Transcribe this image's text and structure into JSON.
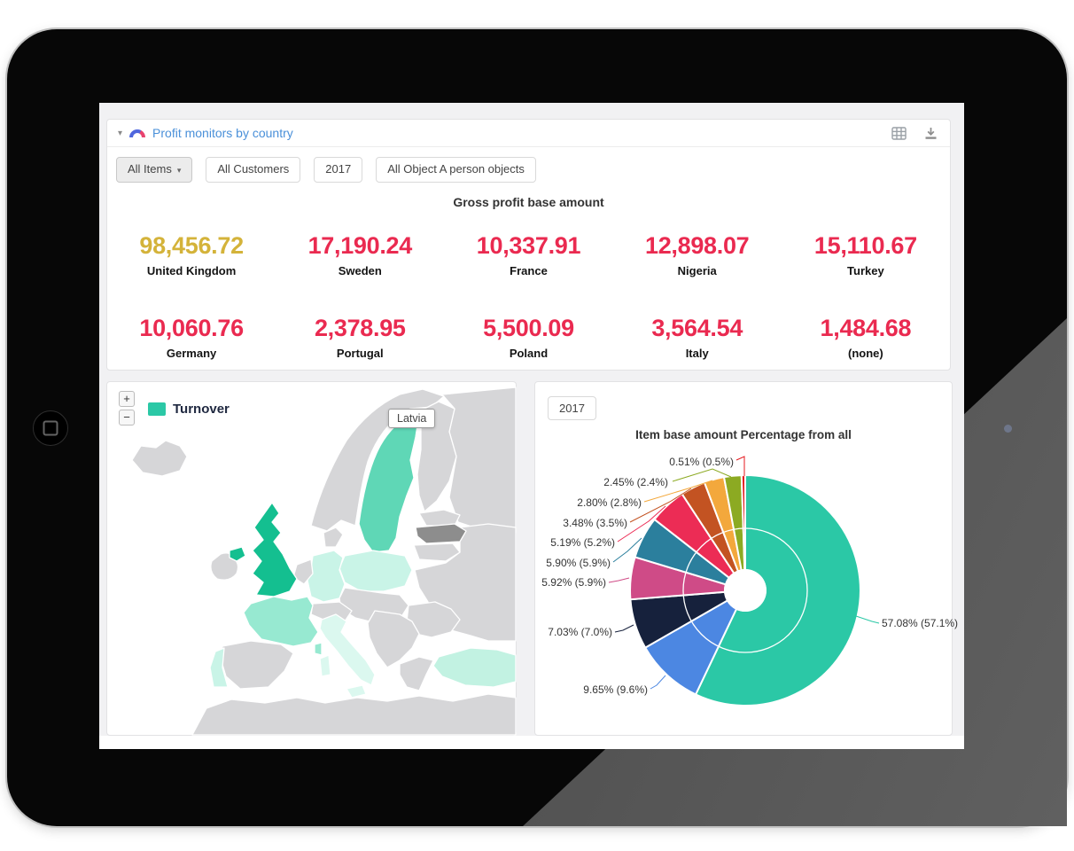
{
  "widget": {
    "title": "Profit monitors by country",
    "collapse_caret": "▾",
    "toolbar_icons": [
      "table-view-icon",
      "download-icon"
    ]
  },
  "filters": [
    {
      "label": "All Items",
      "caret": "▾",
      "active": true
    },
    {
      "label": "All Customers",
      "active": false
    },
    {
      "label": "2017",
      "active": false
    },
    {
      "label": "All Object A person objects",
      "active": false
    }
  ],
  "colors": {
    "title_blue": "#4a90d9",
    "kpi_red": "#ea2a50",
    "kpi_yellow": "#d4b33a",
    "turnover_teal": "#2bc8a6"
  },
  "chart_data": [
    {
      "type": "kpi",
      "title": "Gross profit base amount",
      "items": [
        {
          "country": "United Kingdom",
          "value": "98,456.72",
          "color": "#d4b33a"
        },
        {
          "country": "Sweden",
          "value": "17,190.24",
          "color": "#ea2a50"
        },
        {
          "country": "France",
          "value": "10,337.91",
          "color": "#ea2a50"
        },
        {
          "country": "Nigeria",
          "value": "12,898.07",
          "color": "#ea2a50"
        },
        {
          "country": "Turkey",
          "value": "15,110.67",
          "color": "#ea2a50"
        },
        {
          "country": "Germany",
          "value": "10,060.76",
          "color": "#ea2a50"
        },
        {
          "country": "Portugal",
          "value": "2,378.95",
          "color": "#ea2a50"
        },
        {
          "country": "Poland",
          "value": "5,500.09",
          "color": "#ea2a50"
        },
        {
          "country": "Italy",
          "value": "3,564.54",
          "color": "#ea2a50"
        },
        {
          "country": "(none)",
          "value": "1,484.68",
          "color": "#ea2a50"
        }
      ]
    },
    {
      "type": "map",
      "legend": "Turnover",
      "legend_color": "#2bc8a6",
      "tooltip": "Latvia",
      "zoom_in": "+",
      "zoom_out": "−",
      "country_colors": {
        "united-kingdom": "#14bf90",
        "northern-ireland": "#14bf90",
        "sweden": "#5fd7b6",
        "france": "#97e9d1",
        "germany": "#c9f4e7",
        "poland": "#c9f4e7",
        "portugal": "#c9f4e7",
        "turkey": "#c2f2e2",
        "italy": "#dbf8ef",
        "sicily": "#dbf8ef",
        "sardinia": "#dbf8ef",
        "corsica": "#97e9d1",
        "latvia": "#8d8d8d",
        "default": "#d6d6d8"
      }
    },
    {
      "type": "pie",
      "title": "Item base amount Percentage from all",
      "year_filter": "2017",
      "legend_position": "none",
      "slices": [
        {
          "label": "57.08% (57.1%)",
          "value": 57.08,
          "color": "#2bc8a6"
        },
        {
          "label": "9.65% (9.6%)",
          "value": 9.65,
          "color": "#4c87e2"
        },
        {
          "label": "7.03% (7.0%)",
          "value": 7.03,
          "color": "#16213c"
        },
        {
          "label": "5.92% (5.9%)",
          "value": 5.92,
          "color": "#cf4b87"
        },
        {
          "label": "5.90% (5.9%)",
          "value": 5.9,
          "color": "#2b7f9d"
        },
        {
          "label": "5.19% (5.2%)",
          "value": 5.19,
          "color": "#ec2c55"
        },
        {
          "label": "3.48% (3.5%)",
          "value": 3.48,
          "color": "#c35322"
        },
        {
          "label": "2.80% (2.8%)",
          "value": 2.8,
          "color": "#f3a83c"
        },
        {
          "label": "2.45% (2.4%)",
          "value": 2.45,
          "color": "#8caa22"
        },
        {
          "label": "0.51% (0.5%)",
          "value": 0.51,
          "color": "#e41a1f"
        }
      ]
    }
  ]
}
